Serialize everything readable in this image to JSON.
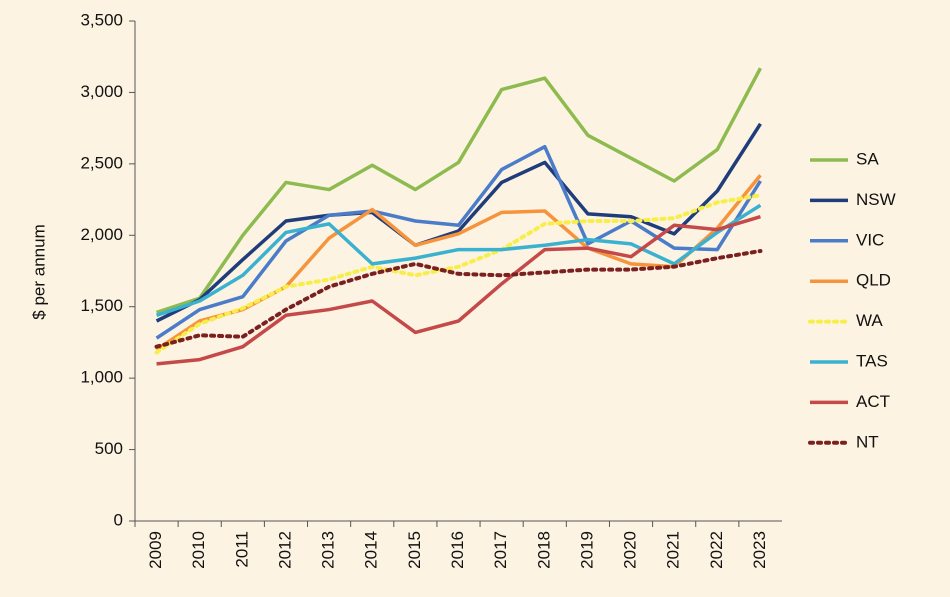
{
  "chart_data": {
    "type": "line",
    "y_label": "$ per annum",
    "categories": [
      "2009",
      "2010",
      "2011",
      "2012",
      "2013",
      "2014",
      "2015",
      "2016",
      "2017",
      "2018",
      "2019",
      "2020",
      "2021",
      "2022",
      "2023"
    ],
    "ylim": [
      0,
      3500
    ],
    "yticks": [
      0,
      500,
      {
        "value": 1000,
        "label": "1,000"
      },
      {
        "value": 1500,
        "label": "1,500"
      },
      {
        "value": 2000,
        "label": "2,000"
      },
      {
        "value": 2500,
        "label": "2,500"
      },
      {
        "value": 3000,
        "label": "3,000"
      },
      {
        "value": 3500,
        "label": "3,500"
      }
    ],
    "grid": false,
    "legend": "right",
    "series": [
      {
        "name": "SA",
        "color": "#8dbb4f",
        "style": "solid",
        "values": [
          1460,
          1560,
          2000,
          2370,
          2320,
          2490,
          2320,
          2510,
          3020,
          3100,
          2700,
          2540,
          2380,
          2600,
          3170
        ]
      },
      {
        "name": "NSW",
        "color": "#1f3d7a",
        "style": "solid",
        "values": [
          1400,
          1550,
          1830,
          2100,
          2140,
          2160,
          1930,
          2030,
          2370,
          2510,
          2150,
          2130,
          2010,
          2310,
          2780
        ]
      },
      {
        "name": "VIC",
        "color": "#4a7cc9",
        "style": "solid",
        "values": [
          1280,
          1480,
          1570,
          1960,
          2140,
          2170,
          2100,
          2070,
          2460,
          2620,
          1940,
          2100,
          1910,
          1900,
          2380
        ]
      },
      {
        "name": "QLD",
        "color": "#f5943c",
        "style": "solid",
        "values": [
          1200,
          1400,
          1480,
          1640,
          1980,
          2180,
          1930,
          2010,
          2160,
          2170,
          1910,
          1800,
          1780,
          2050,
          2420
        ]
      },
      {
        "name": "WA",
        "color": "#f7ee4a",
        "style": "dotted",
        "values": [
          1180,
          1380,
          1490,
          1640,
          1690,
          1780,
          1720,
          1780,
          1900,
          2080,
          2100,
          2100,
          2120,
          2230,
          2280
        ]
      },
      {
        "name": "TAS",
        "color": "#3bb1d0",
        "style": "solid",
        "values": [
          1440,
          1540,
          1720,
          2020,
          2080,
          1800,
          1840,
          1900,
          1900,
          1930,
          1970,
          1940,
          1800,
          2020,
          2210
        ]
      },
      {
        "name": "ACT",
        "color": "#c44a4a",
        "style": "solid",
        "values": [
          1100,
          1130,
          1220,
          1440,
          1480,
          1540,
          1320,
          1400,
          1660,
          1900,
          1910,
          1850,
          2070,
          2040,
          2130
        ]
      },
      {
        "name": "NT",
        "color": "#7a2020",
        "style": "dotted",
        "values": [
          1220,
          1300,
          1290,
          1480,
          1640,
          1730,
          1800,
          1730,
          1720,
          1740,
          1760,
          1760,
          1780,
          1840,
          1890
        ]
      }
    ]
  }
}
